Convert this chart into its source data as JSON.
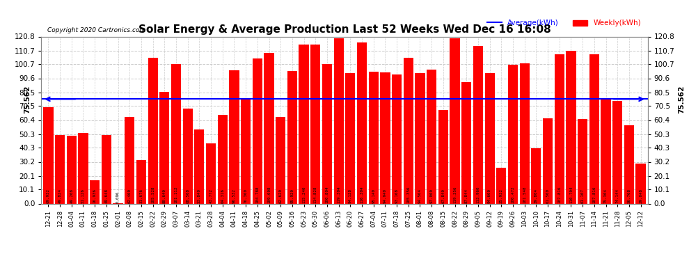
{
  "title": "Solar Energy & Average Production Last 52 Weeks Wed Dec 16 16:08",
  "copyright": "Copyright 2020 Cartronics.com",
  "average_value": 75.562,
  "average_label": "75.562",
  "bar_color": "#FF0000",
  "average_line_color": "#0000FF",
  "background_color": "#FFFFFF",
  "grid_color": "#CCCCCC",
  "ylim": [
    0,
    120.8
  ],
  "yticks": [
    0.0,
    10.1,
    20.1,
    30.2,
    40.3,
    50.3,
    60.4,
    70.5,
    80.5,
    90.6,
    100.7,
    110.7,
    120.8
  ],
  "legend_average_color": "#0000FF",
  "legend_weekly_color": "#FF0000",
  "categories": [
    "12-21",
    "12-28",
    "01-04",
    "01-11",
    "01-18",
    "01-25",
    "02-01",
    "02-08",
    "02-15",
    "02-22",
    "02-29",
    "03-07",
    "03-14",
    "03-21",
    "03-28",
    "04-04",
    "04-11",
    "04-18",
    "04-25",
    "05-02",
    "05-09",
    "05-16",
    "05-23",
    "05-30",
    "06-06",
    "06-13",
    "06-20",
    "06-27",
    "07-04",
    "07-11",
    "07-18",
    "07-25",
    "08-01",
    "08-08",
    "08-15",
    "08-22",
    "08-29",
    "09-05",
    "09-12",
    "09-19",
    "09-26",
    "10-03",
    "10-10",
    "10-17",
    "10-24",
    "10-31",
    "11-07",
    "11-14",
    "11-21",
    "11-28",
    "12-05",
    "12-12"
  ],
  "values": [
    69.932,
    49.824,
    49.208,
    51.126,
    16.936,
    49.648,
    0.096,
    62.46,
    31.676,
    105.528,
    80.64,
    101.112,
    68.568,
    53.84,
    43.772,
    64.316,
    96.532,
    76.36,
    104.788,
    109.008,
    62.62,
    95.92,
    115.24,
    114.828,
    100.804,
    119.304,
    94.128,
    116.304,
    95.14,
    94.94,
    93.168,
    105.356,
    94.564,
    97.0,
    67.84,
    119.356,
    87.844,
    113.96,
    94.6,
    25.932,
    100.472,
    101.548,
    39.804,
    61.56,
    107.816,
    110.704,
    61.107,
    107.816,
    75.304,
    74.144,
    56.768,
    29.048
  ],
  "bar_labels": [
    "69.932",
    "49.824",
    "49.208",
    "51.126",
    "16.936",
    "49.648",
    "0.096",
    "62.460",
    "31.676",
    "105.528",
    "80.640",
    "101.112",
    "68.568",
    "53.840",
    "43.772",
    "64.316",
    "96.532",
    "76.360",
    "104.788",
    "109.008",
    "62.620",
    "95.920",
    "115.240",
    "114.828",
    "100.804",
    "119.304",
    "94.128",
    "116.304",
    "95.140",
    "94.940",
    "93.168",
    "105.356",
    "94.564",
    "97.000",
    "67.840",
    "119.356",
    "87.844",
    "113.960",
    "94.600",
    "25.932",
    "100.472",
    "101.548",
    "39.804",
    "61.560",
    "107.816",
    "110.704",
    "61.107",
    "107.816",
    "75.304",
    "74.144",
    "56.768",
    "29.048"
  ]
}
